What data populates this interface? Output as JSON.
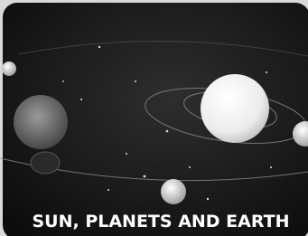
{
  "caption": "SUN, PLANETS AND EARTH"
}
